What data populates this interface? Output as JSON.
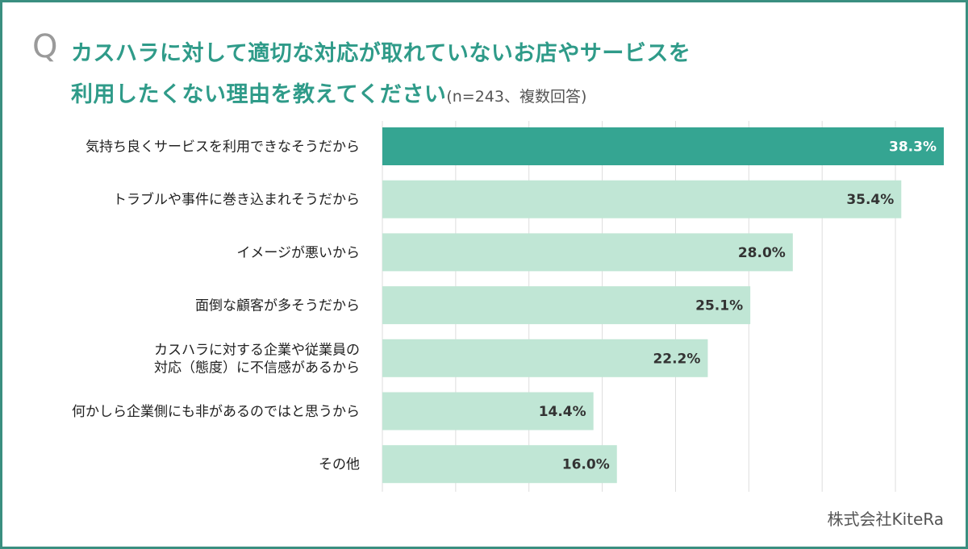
{
  "question": {
    "mark": "Q",
    "line1": "カスハラに対して適切な対応が取れていないお店やサービスを",
    "line2": "利用したくない理由を教えてください",
    "note": "(n=243、複数回答)"
  },
  "credit": "株式会社KiteRa",
  "colors": {
    "highlight_bar": "#35a592",
    "bar": "#c0e6d5",
    "highlight_text": "#ffffff",
    "text": "#333333",
    "grid": "#dddddd",
    "title": "#2f9b89",
    "frame": "#3a8f80"
  },
  "chart_data": {
    "type": "bar",
    "orientation": "horizontal",
    "categories": [
      [
        "気持ち良くサービスを利用できなそうだから"
      ],
      [
        "トラブルや事件に巻き込まれそうだから"
      ],
      [
        "イメージが悪いから"
      ],
      [
        "面倒な顧客が多そうだから"
      ],
      [
        "カスハラに対する企業や従業員の",
        "対応（態度）に不信感があるから"
      ],
      [
        "何かしら企業側にも非があるのではと思うから"
      ],
      [
        "その他"
      ]
    ],
    "values": [
      38.3,
      35.4,
      28.0,
      25.1,
      22.2,
      14.4,
      16.0
    ],
    "value_labels": [
      "38.3%",
      "35.4%",
      "28.0%",
      "25.1%",
      "22.2%",
      "14.4%",
      "16.0%"
    ],
    "highlight_index": 0,
    "unit": "%",
    "xlim": [
      0,
      38.3
    ],
    "grid_step": 5,
    "grid": true,
    "legend": false
  }
}
